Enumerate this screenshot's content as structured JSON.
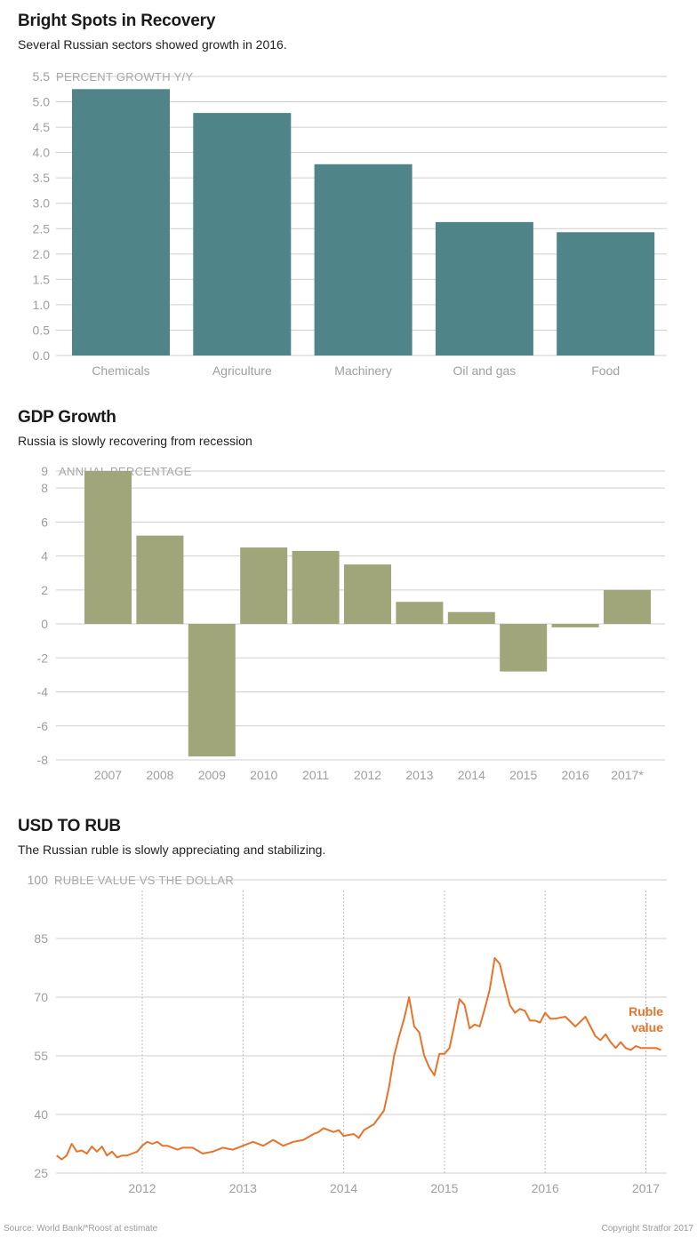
{
  "charts": {
    "bright_spots": {
      "title": "Bright Spots in Recovery",
      "subtitle": "Several Russian sectors showed growth in 2016."
    },
    "gdp": {
      "title": "GDP Growth",
      "subtitle": "Russia is slowly recovering from recession"
    },
    "rub": {
      "title": "USD TO RUB",
      "subtitle": "The Russian ruble is slowly appreciating and stabilizing."
    }
  },
  "footer": {
    "source": "Source: World Bank/*Roost at estimate",
    "copyright": "Copyright Stratfor 2017"
  },
  "colors": {
    "bar1": "#4f8489",
    "bar2": "#a1a57a",
    "line": "#e8732a",
    "grid": "#cfcfcf"
  },
  "chart_data": [
    {
      "type": "bar",
      "title": "Bright Spots in Recovery",
      "subtitle": "Several Russian sectors showed growth in 2016.",
      "ylabel": "PERCENT GROWTH Y/Y",
      "categories": [
        "Chemicals",
        "Agriculture",
        "Machinery",
        "Oil and gas",
        "Food"
      ],
      "values": [
        5.25,
        4.78,
        3.77,
        2.63,
        2.43
      ],
      "ylim": [
        0,
        5.5
      ],
      "yticks": [
        "0.0",
        "0.5",
        "1.0",
        "1.5",
        "2.0",
        "2.5",
        "3.0",
        "3.5",
        "4.0",
        "4.5",
        "5.0",
        "5.5"
      ],
      "grid": true
    },
    {
      "type": "bar",
      "title": "GDP Growth",
      "subtitle": "Russia is slowly recovering from recession",
      "ylabel": "ANNUAL PERCENTAGE",
      "categories": [
        "2007",
        "2008",
        "2009",
        "2010",
        "2011",
        "2012",
        "2013",
        "2014",
        "2015",
        "2016",
        "2017*"
      ],
      "values": [
        9.0,
        5.2,
        -7.8,
        4.5,
        4.3,
        3.5,
        1.3,
        0.7,
        -2.8,
        -0.2,
        2.0
      ],
      "ylim": [
        -8,
        9
      ],
      "yticks": [
        "-8",
        "-6",
        "-4",
        "-2",
        "0",
        "2",
        "4",
        "6",
        "8",
        "9"
      ],
      "grid": true
    },
    {
      "type": "line",
      "title": "USD TO RUB",
      "subtitle": "The Russian ruble is slowly appreciating and stabilizing.",
      "ylabel": "RUBLE VALUE VS THE DOLLAR",
      "ylim": [
        25,
        100
      ],
      "yticks": [
        "25",
        "40",
        "55",
        "70",
        "85",
        "100"
      ],
      "xticks": [
        "2012",
        "2013",
        "2014",
        "2015",
        "2016",
        "2017"
      ],
      "xlim": [
        2011.15,
        2017.17
      ],
      "grid": true,
      "series": [
        {
          "name": "Ruble value",
          "x": [
            2011.15,
            2011.2,
            2011.25,
            2011.3,
            2011.35,
            2011.4,
            2011.45,
            2011.5,
            2011.55,
            2011.6,
            2011.65,
            2011.7,
            2011.75,
            2011.8,
            2011.85,
            2011.9,
            2011.95,
            2012.0,
            2012.05,
            2012.1,
            2012.15,
            2012.2,
            2012.25,
            2012.3,
            2012.35,
            2012.4,
            2012.5,
            2012.6,
            2012.7,
            2012.8,
            2012.9,
            2013.0,
            2013.1,
            2013.2,
            2013.3,
            2013.4,
            2013.5,
            2013.6,
            2013.7,
            2013.75,
            2013.8,
            2013.9,
            2013.95,
            2014.0,
            2014.1,
            2014.15,
            2014.2,
            2014.3,
            2014.4,
            2014.45,
            2014.5,
            2014.55,
            2014.6,
            2014.65,
            2014.7,
            2014.75,
            2014.8,
            2014.85,
            2014.9,
            2014.95,
            2015.0,
            2015.05,
            2015.1,
            2015.15,
            2015.2,
            2015.25,
            2015.3,
            2015.35,
            2015.4,
            2015.45,
            2015.5,
            2015.55,
            2015.6,
            2015.65,
            2015.7,
            2015.75,
            2015.8,
            2015.85,
            2015.9,
            2015.95,
            2016.0,
            2016.05,
            2016.1,
            2016.2,
            2016.3,
            2016.4,
            2016.5,
            2016.55,
            2016.6,
            2016.65,
            2016.7,
            2016.75,
            2016.8,
            2016.85,
            2016.9,
            2016.95,
            2017.0,
            2017.05,
            2017.1,
            2017.15
          ],
          "y": [
            29.5,
            28.5,
            29.5,
            32.5,
            30.5,
            30.8,
            30.0,
            31.8,
            30.5,
            31.8,
            29.5,
            30.5,
            29.0,
            29.5,
            29.5,
            30.0,
            30.5,
            32.0,
            33.0,
            32.5,
            33.0,
            32.0,
            32.0,
            31.5,
            31.0,
            31.5,
            31.5,
            30.0,
            30.5,
            31.5,
            31.0,
            32.0,
            33.0,
            32.0,
            33.5,
            32.0,
            33.0,
            33.5,
            35.0,
            35.5,
            36.5,
            35.5,
            36.0,
            34.5,
            35.0,
            34.0,
            36.0,
            37.5,
            41.0,
            47.0,
            55.0,
            60.0,
            64.5,
            70.0,
            62.5,
            61.0,
            55.0,
            52.0,
            50.0,
            55.5,
            55.5,
            57.0,
            63.0,
            69.5,
            68.0,
            62.0,
            63.0,
            62.5,
            67.0,
            72.0,
            80.0,
            78.5,
            73.0,
            68.0,
            66.0,
            67.0,
            66.5,
            64.0,
            64.0,
            63.5,
            66.0,
            64.5,
            64.5,
            65.0,
            62.5,
            65.0,
            60.0,
            59.0,
            60.5,
            58.5,
            57.0,
            58.5,
            57.0,
            56.5,
            57.5,
            57.0,
            57.0,
            57.0,
            57.0,
            56.5
          ]
        }
      ]
    }
  ]
}
